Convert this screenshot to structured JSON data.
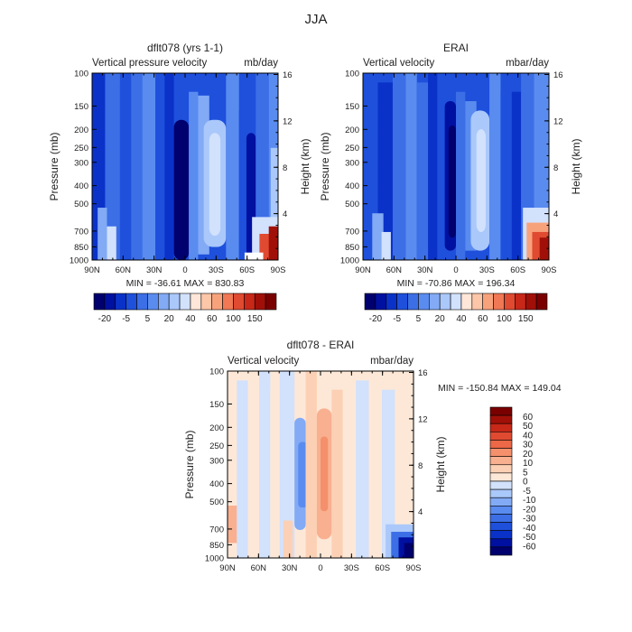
{
  "page": {
    "title": "JJA"
  },
  "colors": {
    "blue_scale": [
      "#00006e",
      "#0010a0",
      "#0a32c8",
      "#1e50dc",
      "#3c6ee6",
      "#5a8cf0",
      "#82aaf5",
      "#aac8fa",
      "#d2e1fc",
      "#ffffff"
    ],
    "red_scale": [
      "#ffe6d8",
      "#fcc6a8",
      "#f8a27c",
      "#f07854",
      "#e04a30",
      "#c82818",
      "#a01008",
      "#7a0000"
    ],
    "diff_scale": [
      "#00006e",
      "#0010a0",
      "#0a32c8",
      "#1e50dc",
      "#3c6ee6",
      "#5a8cf0",
      "#82aaf5",
      "#aac8fa",
      "#d2e1fc",
      "#fde8d8",
      "#fcd0b4",
      "#f8b090",
      "#f4906c",
      "#ec6846",
      "#e04a30",
      "#c82818",
      "#a01008",
      "#7a0000"
    ],
    "plot_base_blue": "#3c6ee6",
    "plot_base_diff": "#fde8d8"
  },
  "chart_data": [
    {
      "type": "heatmap",
      "title": "dflt078 (yrs 1-1)",
      "subtitle_left": "Vertical pressure velocity",
      "subtitle_right": "mb/day",
      "xlabel": "",
      "ylabel": "Pressure (mb)",
      "y2label": "Height (km)",
      "x_ticks": [
        "90N",
        "60N",
        "30N",
        "0",
        "30S",
        "60S",
        "90S"
      ],
      "y_ticks": [
        "100",
        "150",
        "200",
        "250",
        "300",
        "400",
        "500",
        "700",
        "850",
        "1000"
      ],
      "y_tick_values": [
        100,
        150,
        200,
        250,
        300,
        400,
        500,
        700,
        850,
        1000
      ],
      "y2_ticks": [
        "16",
        "12",
        "8",
        "4"
      ],
      "y2_tick_values": [
        16,
        12,
        8,
        4
      ],
      "ylim": [
        1000,
        100
      ],
      "stats": "MIN = -36.61   MAX = 830.83",
      "colorbar_labels": [
        "-20",
        "-5",
        "5",
        "20",
        "40",
        "60",
        "100",
        "150"
      ],
      "colorbar_levels": [
        "-20",
        "-5",
        "5",
        "20",
        "40",
        "60",
        "100",
        "150"
      ]
    },
    {
      "type": "heatmap",
      "title": "ERAI",
      "subtitle_left": "Vertical velocity",
      "subtitle_right": "mbar/day",
      "xlabel": "",
      "ylabel": "Pressure (mb)",
      "y2label": "Height (km)",
      "x_ticks": [
        "90N",
        "60N",
        "30N",
        "0",
        "30S",
        "60S",
        "90S"
      ],
      "y_ticks": [
        "100",
        "150",
        "200",
        "250",
        "300",
        "400",
        "500",
        "700",
        "850",
        "1000"
      ],
      "y_tick_values": [
        100,
        150,
        200,
        250,
        300,
        400,
        500,
        700,
        850,
        1000
      ],
      "y2_ticks": [
        "16",
        "12",
        "8",
        "4"
      ],
      "y2_tick_values": [
        16,
        12,
        8,
        4
      ],
      "ylim": [
        1000,
        100
      ],
      "stats": "MIN = -70.86   MAX = 196.34",
      "colorbar_labels": [
        "-20",
        "-5",
        "5",
        "20",
        "40",
        "60",
        "100",
        "150"
      ],
      "colorbar_levels": [
        "-20",
        "-5",
        "5",
        "20",
        "40",
        "60",
        "100",
        "150"
      ]
    },
    {
      "type": "heatmap",
      "title": "dflt078 - ERAI",
      "subtitle_left": "Vertical velocity",
      "subtitle_right": "mbar/day",
      "xlabel": "",
      "ylabel": "Pressure (mb)",
      "y2label": "Height (km)",
      "x_ticks": [
        "90N",
        "60N",
        "30N",
        "0",
        "30S",
        "60S",
        "90S"
      ],
      "y_ticks": [
        "100",
        "150",
        "200",
        "250",
        "300",
        "400",
        "500",
        "700",
        "850",
        "1000"
      ],
      "y_tick_values": [
        100,
        150,
        200,
        250,
        300,
        400,
        500,
        700,
        850,
        1000
      ],
      "y2_ticks": [
        "16",
        "12",
        "8",
        "4"
      ],
      "y2_tick_values": [
        16,
        12,
        8,
        4
      ],
      "ylim": [
        1000,
        100
      ],
      "stats": "MIN = -150.84   MAX = 149.04",
      "colorbar_labels": [
        "60",
        "50",
        "40",
        "30",
        "20",
        "10",
        "5",
        "0",
        "-5",
        "-10",
        "-20",
        "-30",
        "-40",
        "-50",
        "-60"
      ],
      "colorbar_levels": [
        "60",
        "50",
        "40",
        "30",
        "20",
        "10",
        "5",
        "0",
        "-5",
        "-10",
        "-20",
        "-30",
        "-40",
        "-50",
        "-60"
      ]
    }
  ]
}
